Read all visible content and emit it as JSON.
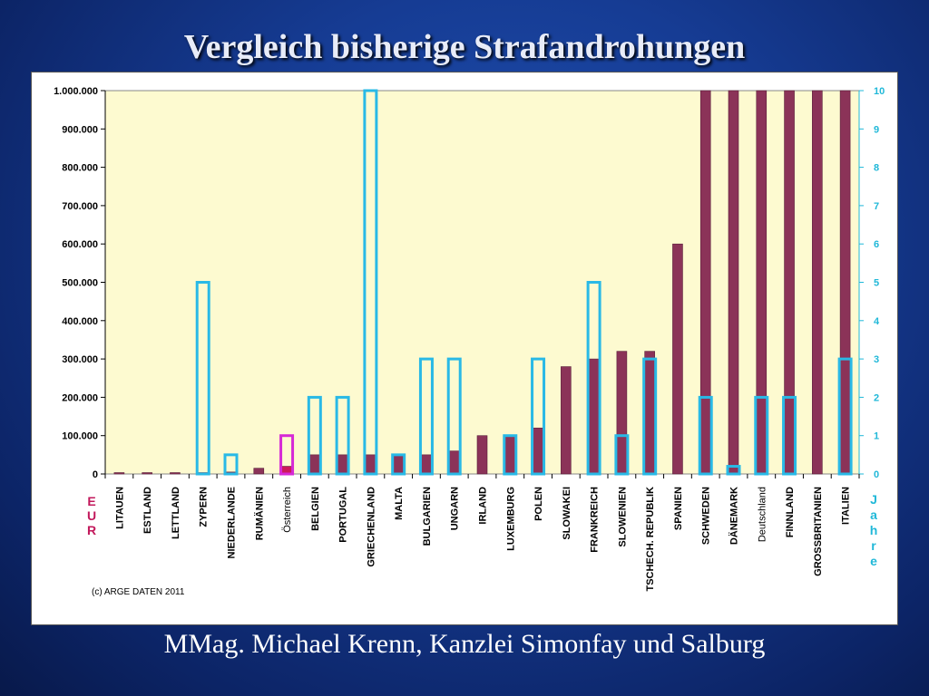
{
  "slide": {
    "title": "Vergleich bisherige Strafandrohungen",
    "footer": "MMag. Michael Krenn, Kanzlei Simonfay und Salburg",
    "background": "#163c94"
  },
  "chart_data": {
    "type": "bar",
    "title": "",
    "copyright": "(c) ARGE DATEN 2011",
    "left_axis": {
      "label_letters": [
        "E",
        "U",
        "R"
      ],
      "range": [
        0,
        1000000
      ],
      "ticks": [
        "0",
        "100.000",
        "200.000",
        "300.000",
        "400.000",
        "500.000",
        "600.000",
        "700.000",
        "800.000",
        "900.000",
        "1.000.000"
      ]
    },
    "right_axis": {
      "label_letters": [
        "J",
        "a",
        "h",
        "r",
        "e"
      ],
      "range": [
        0,
        10
      ],
      "ticks": [
        "0",
        "1",
        "2",
        "3",
        "4",
        "5",
        "6",
        "7",
        "8",
        "9",
        "10"
      ]
    },
    "grid": false,
    "legend": "none",
    "colors": {
      "plot_bg": "#fdfad0",
      "eur_bar": "#8b3358",
      "jahre_bar": "#29b9e6",
      "highlight_bar": "#cc1a5a",
      "highlight_outline": "#d62ad6",
      "left_axis_text": "#000000",
      "right_axis_text": "#20b8d8",
      "left_axis_label": "#c2185b"
    },
    "categories": [
      "LITAUEN",
      "ESTLAND",
      "LETTLAND",
      "ZYPERN",
      "NIEDERLANDE",
      "RUMÄNIEN",
      "Österreich",
      "BELGIEN",
      "PORTUGAL",
      "GRIECHENLAND",
      "MALTA",
      "BULGARIEN",
      "UNGARN",
      "IRLAND",
      "LUXEMBURG",
      "POLEN",
      "SLOWAKEI",
      "FRANKREICH",
      "SLOWENIEN",
      "TSCHECH. REPUBLIK",
      "SPANIEN",
      "SCHWEDEN",
      "DÄNEMARK",
      "Deutschland",
      "FINNLAND",
      "GROSSBRITANIEN",
      "ITALIEN"
    ],
    "highlight_category": "Österreich",
    "series": [
      {
        "name": "EUR",
        "axis": "left",
        "style": "filled",
        "values": [
          1000,
          1000,
          1000,
          1000,
          5000,
          15000,
          20000,
          50000,
          50000,
          50000,
          50000,
          50000,
          60000,
          100000,
          100000,
          120000,
          280000,
          300000,
          320000,
          320000,
          600000,
          1000000,
          1000000,
          1000000,
          1000000,
          1000000,
          1000000
        ]
      },
      {
        "name": "Jahre",
        "axis": "right",
        "style": "outline",
        "values": [
          0,
          0,
          0,
          5,
          0.5,
          0,
          1,
          2,
          2,
          10,
          0.5,
          3,
          3,
          0,
          1,
          3,
          0,
          5,
          1,
          3,
          0,
          2,
          0.2,
          2,
          2,
          0,
          3
        ]
      }
    ]
  }
}
